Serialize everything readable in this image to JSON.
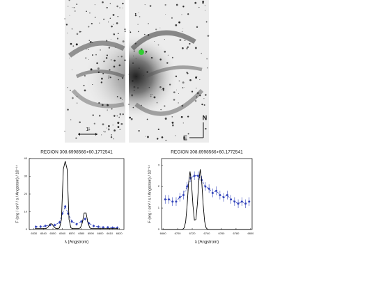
{
  "image": {
    "labels": {
      "north": "N",
      "east": "E",
      "scale": "1'"
    }
  },
  "chart_data": [
    {
      "type": "line",
      "title": "REGION 308.6998566+60.1772541",
      "x_label": "λ (Angstrom)",
      "y_label": "F (erg / cm² / s / Angstrom) / 10⁻¹⁴",
      "xlim": [
        6525,
        6625
      ],
      "xticks": [
        6530,
        6540,
        6550,
        6560,
        6570,
        6580,
        6590,
        6600,
        6610,
        6620
      ],
      "ylim": [
        0,
        40
      ],
      "yticks": [
        0,
        10,
        20,
        30,
        40
      ],
      "series": [
        {
          "color": "#3344bb",
          "style": "points",
          "x": [
            6532,
            6537,
            6542,
            6547,
            6552,
            6557,
            6560,
            6563,
            6566,
            6570,
            6575,
            6580,
            6584,
            6588,
            6593,
            6598,
            6603,
            6608,
            6613,
            6618
          ],
          "values": [
            1.5,
            1.6,
            2,
            2.5,
            2.5,
            4,
            9,
            13,
            9,
            4.5,
            3,
            4.5,
            6,
            3.5,
            2,
            1.5,
            1.2,
            1.2,
            1,
            1
          ],
          "errors": [
            0.8,
            0.8,
            0.8,
            0.8,
            0.8,
            0.8,
            0.8,
            0.8,
            0.8,
            0.8,
            0.8,
            0.8,
            0.8,
            0.8,
            0.8,
            0.8,
            0.8,
            0.8,
            0.8,
            0.8
          ]
        },
        {
          "color": "#000000",
          "style": "line",
          "x": [
            6531,
            6533,
            6535,
            6537,
            6539,
            6541,
            6543,
            6545,
            6547,
            6549,
            6551,
            6553,
            6555,
            6557,
            6559,
            6561,
            6563,
            6565,
            6567,
            6569,
            6571,
            6573,
            6575,
            6577,
            6579,
            6581,
            6583,
            6585,
            6587,
            6589,
            6591,
            6593,
            6595,
            6597,
            6599,
            6601,
            6603,
            6605,
            6607,
            6609,
            6611,
            6613,
            6615,
            6617,
            6619
          ],
          "values": [
            0.5,
            0.5,
            0.5,
            0.5,
            0.5,
            0.5,
            0.63,
            1.47,
            3.15,
            3.15,
            1.47,
            0.63,
            0.5,
            0.92,
            5.64,
            34.0,
            38.5,
            34.0,
            5.64,
            0.92,
            0.5,
            0.5,
            0.5,
            0.5,
            0.94,
            3.75,
            9.33,
            9.33,
            3.75,
            0.94,
            0.5,
            0.5,
            0.5,
            0.5,
            0.5,
            0.5,
            0.5,
            0.5,
            0.5,
            0.5,
            0.5,
            0.5,
            0.5,
            0.5,
            0.5
          ]
        }
      ]
    },
    {
      "type": "line",
      "title": "REGION 308.6998566+60.1772541",
      "x_label": "λ (Angstrom)",
      "y_label": "F (erg / cm² / s / Angstrom) / 10⁻¹⁴",
      "xlim": [
        6678,
        6802
      ],
      "xticks": [
        6680,
        6700,
        6720,
        6740,
        6760,
        6780,
        6800
      ],
      "ylim": [
        0,
        3.3
      ],
      "yticks": [
        0,
        1,
        2,
        3
      ],
      "series": [
        {
          "color": "#3344bb",
          "style": "points",
          "x": [
            6683,
            6688,
            6693,
            6698,
            6703,
            6708,
            6713,
            6718,
            6723,
            6728,
            6733,
            6738,
            6743,
            6748,
            6753,
            6758,
            6763,
            6768,
            6773,
            6778,
            6783,
            6788,
            6793,
            6798
          ],
          "values": [
            1.4,
            1.4,
            1.3,
            1.3,
            1.5,
            1.6,
            2.0,
            2.4,
            2.5,
            2.5,
            2.3,
            2.0,
            1.9,
            1.7,
            1.8,
            1.6,
            1.5,
            1.6,
            1.4,
            1.3,
            1.2,
            1.3,
            1.2,
            1.3
          ],
          "errors": [
            0.2,
            0.2,
            0.2,
            0.2,
            0.2,
            0.2,
            0.2,
            0.2,
            0.2,
            0.2,
            0.2,
            0.2,
            0.2,
            0.2,
            0.2,
            0.2,
            0.2,
            0.2,
            0.2,
            0.2,
            0.2,
            0.2,
            0.2,
            0.2
          ]
        },
        {
          "color": "#000000",
          "style": "line",
          "x": [
            6680,
            6701,
            6703,
            6705,
            6707,
            6709,
            6711,
            6713,
            6715,
            6717,
            6719,
            6721,
            6723,
            6725,
            6727,
            6729,
            6731,
            6733,
            6735,
            6737,
            6739,
            6741,
            6743,
            6745,
            6800
          ],
          "values": [
            0,
            0,
            0,
            0,
            0.01,
            0.08,
            0.36,
            1.11,
            2.16,
            2.7,
            2.16,
            1.12,
            0.44,
            0.46,
            1.16,
            2.24,
            2.8,
            2.24,
            1.15,
            0.38,
            0.08,
            0.01,
            0,
            0,
            0
          ]
        }
      ]
    }
  ]
}
